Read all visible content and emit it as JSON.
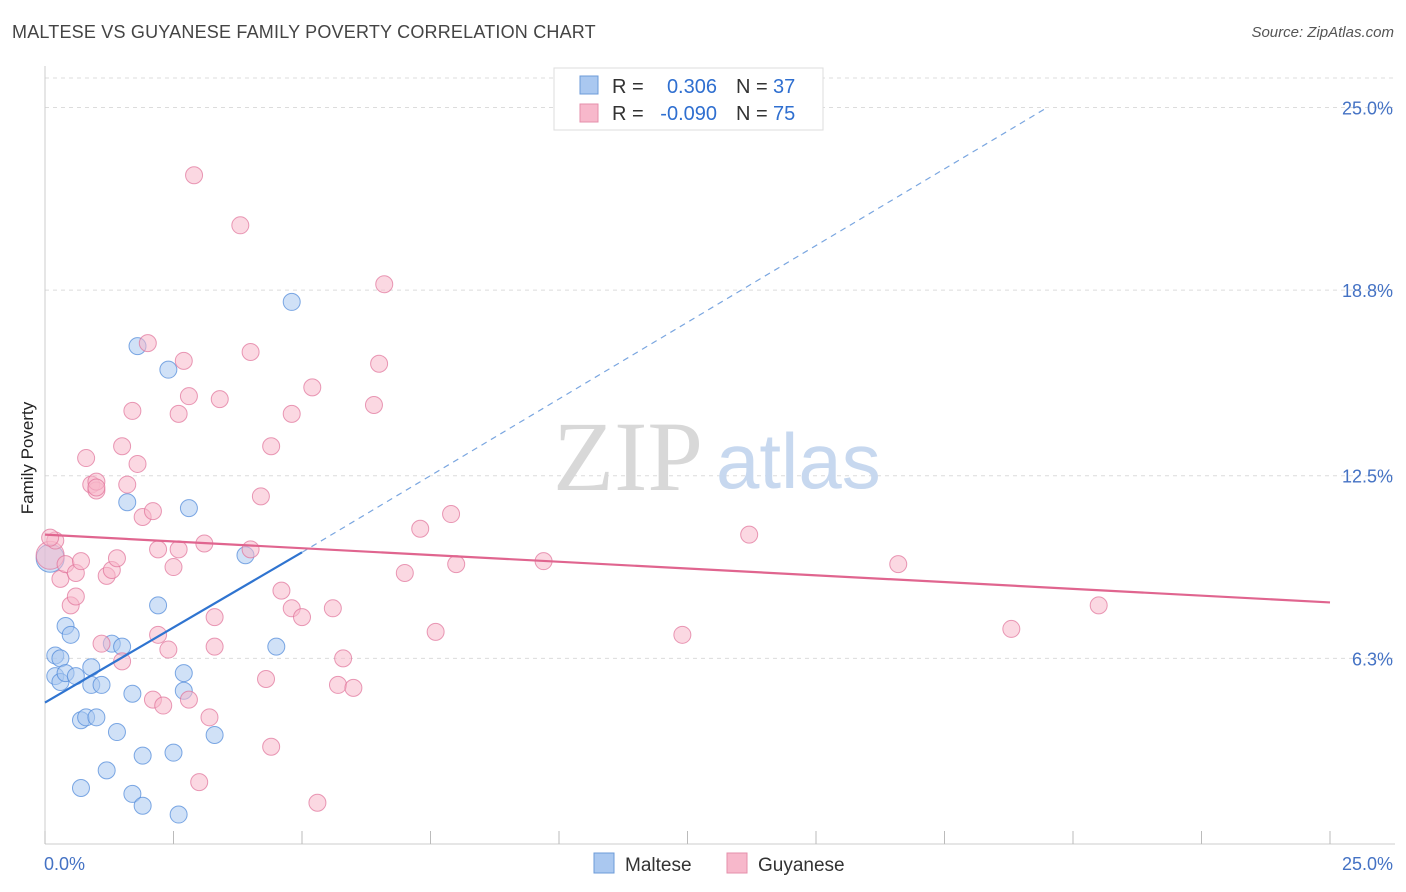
{
  "title": "MALTESE VS GUYANESE FAMILY POVERTY CORRELATION CHART",
  "source": "Source: ZipAtlas.com",
  "watermark": {
    "zip": "ZIP",
    "atlas": "atlas"
  },
  "legend": {
    "rows": [
      {
        "r_label": "R =",
        "r_value": "0.306",
        "n_label": "N =",
        "n_value": "37",
        "color": "#aac8f0"
      },
      {
        "r_label": "R =",
        "r_value": "-0.090",
        "n_label": "N =",
        "n_value": "75",
        "color": "#f7b8cb"
      }
    ]
  },
  "bottom_legend": [
    "Maltese",
    "Guyanese"
  ],
  "chart_data": {
    "type": "scatter",
    "title": "MALTESE VS GUYANESE FAMILY POVERTY CORRELATION CHART",
    "xlabel": "",
    "ylabel": "Family Poverty",
    "xlim": [
      0,
      25
    ],
    "ylim": [
      0,
      26
    ],
    "x_tick_labels": [
      "0.0%",
      "25.0%"
    ],
    "y_ticks": [
      {
        "value": 6.3,
        "label": "6.3%"
      },
      {
        "value": 12.5,
        "label": "12.5%"
      },
      {
        "value": 18.8,
        "label": "18.8%"
      },
      {
        "value": 25.0,
        "label": "25.0%"
      }
    ],
    "grid": true,
    "legend_position": "top-center",
    "series": [
      {
        "name": "Maltese",
        "color": "#4a86d8",
        "fill": "#aac8f0",
        "r": 0.306,
        "n": 37,
        "trend": {
          "x": [
            0.0,
            5.0
          ],
          "y": [
            4.8,
            9.9
          ],
          "extend_to": [
            19.5,
            25.0
          ]
        },
        "points": [
          [
            0.1,
            9.7
          ],
          [
            0.2,
            6.4
          ],
          [
            0.3,
            6.3
          ],
          [
            0.2,
            5.7
          ],
          [
            0.3,
            5.5
          ],
          [
            0.4,
            5.8
          ],
          [
            0.4,
            7.4
          ],
          [
            0.5,
            7.1
          ],
          [
            0.6,
            5.7
          ],
          [
            0.7,
            4.2
          ],
          [
            0.8,
            4.3
          ],
          [
            0.9,
            5.4
          ],
          [
            0.9,
            6.0
          ],
          [
            1.0,
            4.3
          ],
          [
            1.1,
            5.4
          ],
          [
            1.3,
            6.8
          ],
          [
            1.4,
            3.8
          ],
          [
            1.5,
            6.7
          ],
          [
            1.2,
            2.5
          ],
          [
            0.7,
            1.9
          ],
          [
            1.6,
            11.6
          ],
          [
            1.7,
            5.1
          ],
          [
            1.7,
            1.7
          ],
          [
            1.9,
            1.3
          ],
          [
            1.9,
            3.0
          ],
          [
            1.8,
            16.9
          ],
          [
            2.2,
            8.1
          ],
          [
            2.4,
            16.1
          ],
          [
            2.5,
            3.1
          ],
          [
            2.6,
            1.0
          ],
          [
            2.7,
            5.2
          ],
          [
            2.7,
            5.8
          ],
          [
            2.8,
            11.4
          ],
          [
            3.3,
            3.7
          ],
          [
            3.9,
            9.8
          ],
          [
            4.5,
            6.7
          ],
          [
            4.8,
            18.4
          ]
        ]
      },
      {
        "name": "Guyanese",
        "color": "#e07098",
        "fill": "#f7b8cb",
        "r": -0.09,
        "n": 75,
        "trend": {
          "x": [
            0.0,
            25.0
          ],
          "y": [
            10.5,
            8.2
          ]
        },
        "points": [
          [
            0.1,
            9.8
          ],
          [
            0.2,
            10.3
          ],
          [
            0.3,
            9.0
          ],
          [
            0.4,
            9.5
          ],
          [
            0.5,
            8.1
          ],
          [
            0.6,
            8.4
          ],
          [
            0.6,
            9.2
          ],
          [
            0.7,
            9.6
          ],
          [
            0.8,
            13.1
          ],
          [
            0.9,
            12.2
          ],
          [
            1.0,
            12.0
          ],
          [
            1.0,
            12.3
          ],
          [
            1.1,
            6.8
          ],
          [
            1.2,
            9.1
          ],
          [
            1.3,
            9.3
          ],
          [
            1.4,
            9.7
          ],
          [
            1.5,
            13.5
          ],
          [
            1.5,
            6.2
          ],
          [
            1.6,
            12.2
          ],
          [
            1.7,
            14.7
          ],
          [
            1.8,
            12.9
          ],
          [
            1.9,
            11.1
          ],
          [
            2.0,
            17.0
          ],
          [
            2.1,
            11.3
          ],
          [
            2.1,
            4.9
          ],
          [
            2.2,
            7.1
          ],
          [
            2.3,
            4.7
          ],
          [
            2.4,
            6.6
          ],
          [
            2.5,
            9.4
          ],
          [
            2.6,
            10.0
          ],
          [
            2.6,
            14.6
          ],
          [
            2.7,
            16.4
          ],
          [
            2.8,
            4.9
          ],
          [
            2.8,
            15.2
          ],
          [
            2.9,
            22.7
          ],
          [
            3.0,
            2.1
          ],
          [
            3.1,
            10.2
          ],
          [
            3.2,
            4.3
          ],
          [
            3.3,
            7.7
          ],
          [
            3.3,
            6.7
          ],
          [
            3.4,
            15.1
          ],
          [
            3.8,
            21.0
          ],
          [
            4.0,
            10.0
          ],
          [
            4.0,
            16.7
          ],
          [
            4.2,
            11.8
          ],
          [
            4.3,
            5.6
          ],
          [
            4.4,
            13.5
          ],
          [
            4.4,
            3.3
          ],
          [
            4.6,
            8.6
          ],
          [
            4.8,
            8.0
          ],
          [
            4.8,
            14.6
          ],
          [
            5.0,
            7.7
          ],
          [
            5.2,
            15.5
          ],
          [
            5.3,
            1.4
          ],
          [
            5.6,
            8.0
          ],
          [
            5.7,
            5.4
          ],
          [
            5.8,
            6.3
          ],
          [
            6.0,
            5.3
          ],
          [
            6.4,
            14.9
          ],
          [
            6.5,
            16.3
          ],
          [
            6.6,
            19.0
          ],
          [
            7.0,
            9.2
          ],
          [
            7.3,
            10.7
          ],
          [
            7.6,
            7.2
          ],
          [
            7.9,
            11.2
          ],
          [
            8.0,
            9.5
          ],
          [
            9.7,
            9.6
          ],
          [
            12.4,
            7.1
          ],
          [
            13.7,
            10.5
          ],
          [
            16.6,
            9.5
          ],
          [
            18.8,
            7.3
          ],
          [
            20.5,
            8.1
          ],
          [
            0.1,
            10.4
          ],
          [
            2.2,
            10.0
          ],
          [
            1.0,
            12.1
          ]
        ]
      }
    ]
  }
}
